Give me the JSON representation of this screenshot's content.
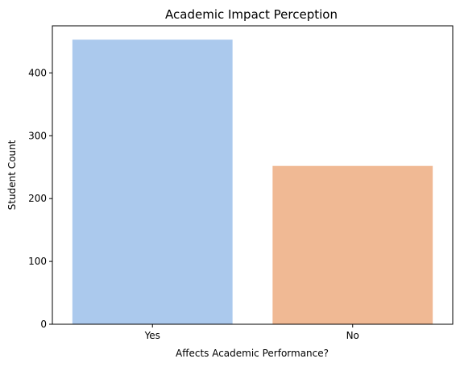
{
  "chart_data": {
    "type": "bar",
    "title": "Academic Impact Perception",
    "xlabel": "Affects Academic Performance?",
    "ylabel": "Student Count",
    "categories": [
      "Yes",
      "No"
    ],
    "values": [
      453,
      252
    ],
    "colors": [
      "#abc9ed",
      "#f0b994"
    ],
    "ylim": [
      0,
      475
    ],
    "yticks": [
      0,
      100,
      200,
      300,
      400
    ],
    "grid": false,
    "legend": "none"
  }
}
